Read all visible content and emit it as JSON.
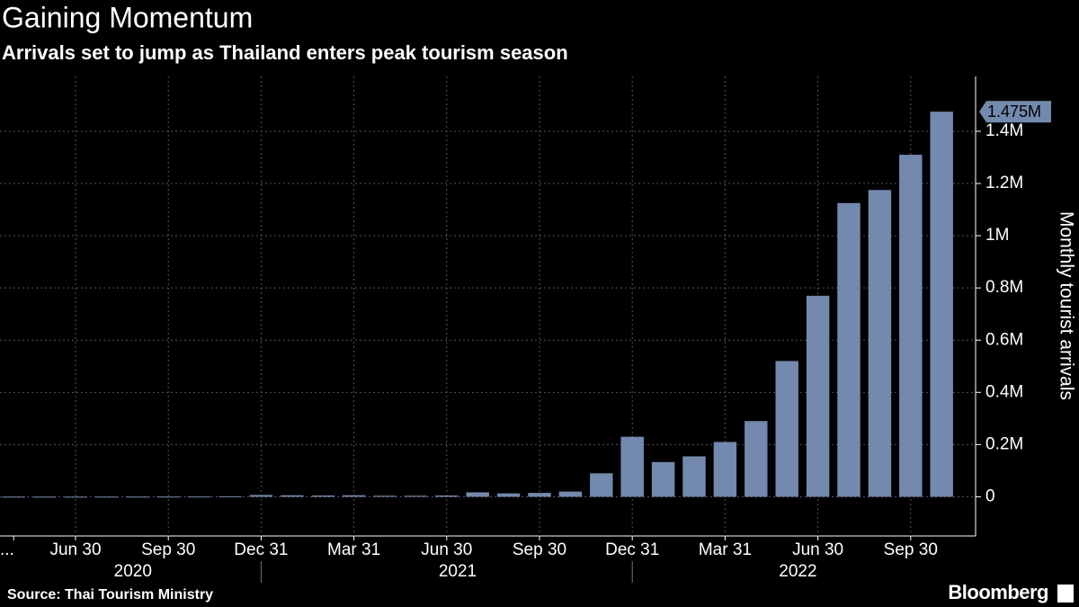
{
  "chart_data": {
    "type": "bar",
    "title": "Gaining Momentum",
    "subtitle": "Arrivals set to jump as Thailand enters peak tourism season",
    "y_axis_label": "Monthly tourist arrivals",
    "source": "Source: Thai Tourism Ministry",
    "brand": "Bloomberg",
    "categories": [
      "...",
      null,
      "Jun 30",
      null,
      null,
      "Sep 30",
      null,
      null,
      "Dec 31",
      null,
      null,
      "Mar 31",
      null,
      null,
      "Jun 30",
      null,
      null,
      "Sep 30",
      null,
      null,
      "Dec 31",
      null,
      null,
      "Mar 31",
      null,
      null,
      "Jun 30",
      null,
      null,
      "Sep 30",
      null
    ],
    "years": [
      {
        "label": "2020",
        "months": 9
      },
      {
        "label": "2021",
        "months": 12
      },
      {
        "label": "2022",
        "months": 10
      }
    ],
    "values": [
      500,
      400,
      400,
      500,
      600,
      800,
      1000,
      2000,
      7000,
      6000,
      5000,
      6000,
      4000,
      4000,
      5000,
      17000,
      13000,
      15000,
      20000,
      90000,
      230000,
      133000,
      155000,
      210000,
      290000,
      520000,
      770000,
      1125000,
      1175000,
      1310000,
      1475000
    ],
    "value_labels": {
      "30": "1.475M"
    },
    "color": "#7389ad",
    "ylim": [
      -150000,
      1610000
    ],
    "yticks": [
      0,
      {
        "value": 200000,
        "label": "0.2M"
      },
      {
        "value": 400000,
        "label": "0.4M"
      },
      {
        "value": 600000,
        "label": "0.6M"
      },
      {
        "value": 800000,
        "label": "0.8M"
      },
      {
        "value": 1000000,
        "label": "1M"
      },
      {
        "value": 1200000,
        "label": "1.2M"
      },
      {
        "value": 1400000,
        "label": "1.4M"
      }
    ],
    "grid": true
  }
}
